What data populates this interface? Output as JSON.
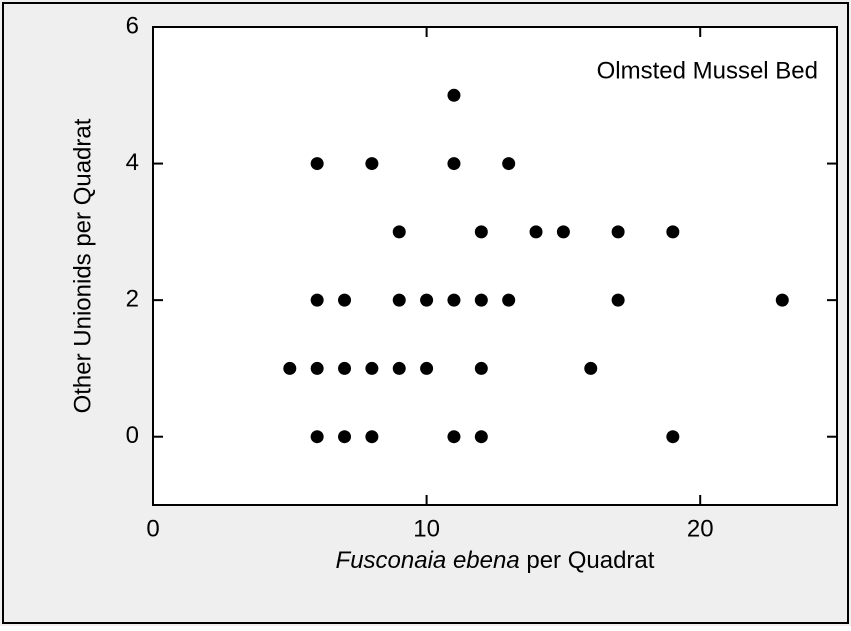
{
  "chart_data": {
    "type": "scatter",
    "annotation": "Olmsted Mussel Bed",
    "xlabel": {
      "italic": "Fusconaia ebena",
      "plain": "per Quadrat"
    },
    "ylabel": "Other Unionids per Quadrat",
    "xlim": [
      0,
      25
    ],
    "ylim": [
      -1,
      6
    ],
    "xticks": [
      0,
      10,
      20
    ],
    "yticks": [
      0,
      2,
      4,
      6
    ],
    "color": "#000000",
    "x": [
      11,
      6,
      8,
      11,
      13,
      9,
      12,
      14,
      15,
      17,
      19,
      6,
      7,
      9,
      10,
      11,
      12,
      13,
      17,
      23,
      5,
      6,
      7,
      8,
      9,
      10,
      12,
      16,
      6,
      7,
      8,
      11,
      12,
      19
    ],
    "y": [
      5,
      4,
      4,
      4,
      4,
      3,
      3,
      3,
      3,
      3,
      3,
      2,
      2,
      2,
      2,
      2,
      2,
      2,
      2,
      2,
      1,
      1,
      1,
      1,
      1,
      1,
      1,
      1,
      0,
      0,
      0,
      0,
      0,
      0
    ]
  }
}
